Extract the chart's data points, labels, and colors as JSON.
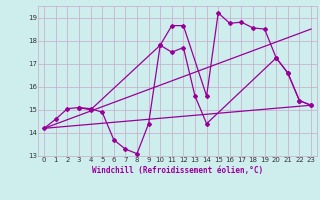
{
  "xlabel": "Windchill (Refroidissement éolien,°C)",
  "xlim": [
    -0.5,
    23.5
  ],
  "ylim": [
    13,
    19.5
  ],
  "yticks": [
    13,
    14,
    15,
    16,
    17,
    18,
    19
  ],
  "xticks": [
    0,
    1,
    2,
    3,
    4,
    5,
    6,
    7,
    8,
    9,
    10,
    11,
    12,
    13,
    14,
    15,
    16,
    17,
    18,
    19,
    20,
    21,
    22,
    23
  ],
  "background_color": "#ceeeed",
  "grid_color": "#c8a8c8",
  "line_color": "#990099",
  "line1_x": [
    0,
    1,
    2,
    3,
    4,
    5,
    6,
    7,
    8,
    9,
    10,
    11,
    12,
    13,
    14,
    20,
    21,
    22,
    23
  ],
  "line1_y": [
    14.2,
    14.6,
    15.05,
    15.1,
    15.05,
    14.9,
    13.7,
    13.3,
    13.1,
    14.4,
    17.8,
    17.5,
    17.7,
    15.6,
    14.4,
    17.25,
    16.6,
    15.4,
    15.2
  ],
  "line2_x": [
    0,
    23
  ],
  "line2_y": [
    14.2,
    15.2
  ],
  "line3_x": [
    0,
    23
  ],
  "line3_y": [
    14.2,
    18.5
  ],
  "line4_x": [
    3,
    4,
    10,
    11,
    12,
    14,
    15,
    16,
    17,
    18,
    19,
    20,
    21,
    22,
    23
  ],
  "line4_y": [
    15.1,
    15.0,
    17.8,
    18.65,
    18.65,
    15.6,
    19.2,
    18.75,
    18.8,
    18.55,
    18.5,
    17.25,
    16.6,
    15.4,
    15.2
  ]
}
